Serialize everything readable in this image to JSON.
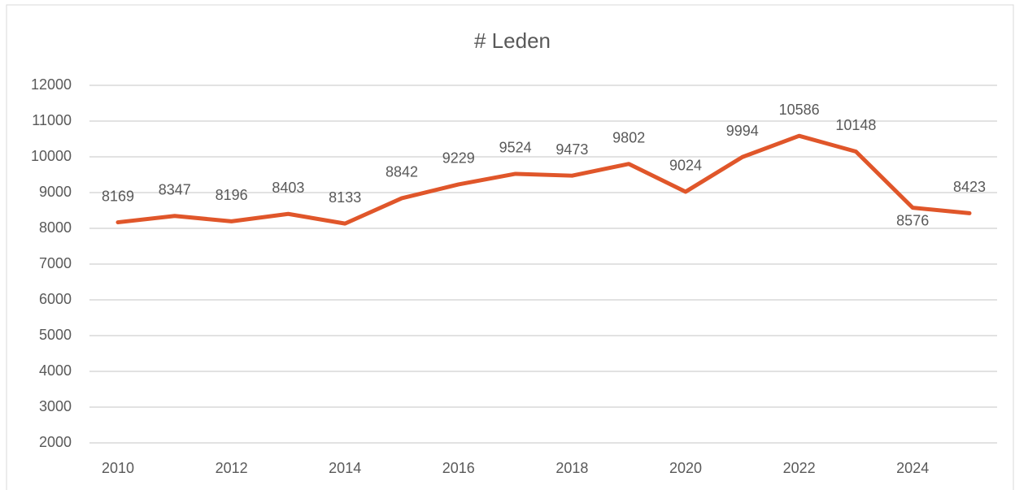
{
  "chart_data": {
    "type": "line",
    "title": "# Leden",
    "x": [
      2010,
      2011,
      2012,
      2013,
      2014,
      2015,
      2016,
      2017,
      2018,
      2019,
      2020,
      2021,
      2022,
      2023,
      2024,
      2025
    ],
    "series": [
      {
        "name": "# Leden",
        "color": "#e0562a",
        "values": [
          8169,
          8347,
          8196,
          8403,
          8133,
          8842,
          9229,
          9524,
          9473,
          9802,
          9024,
          9994,
          10586,
          10148,
          8576,
          8423
        ]
      }
    ],
    "xlim": [
      2010,
      2025
    ],
    "xticks": [
      2010,
      2012,
      2014,
      2016,
      2018,
      2020,
      2022,
      2024
    ],
    "ylim": [
      2000,
      12000
    ],
    "yticks": [
      2000,
      3000,
      4000,
      5000,
      6000,
      7000,
      8000,
      9000,
      10000,
      11000,
      12000
    ],
    "grid": true
  }
}
